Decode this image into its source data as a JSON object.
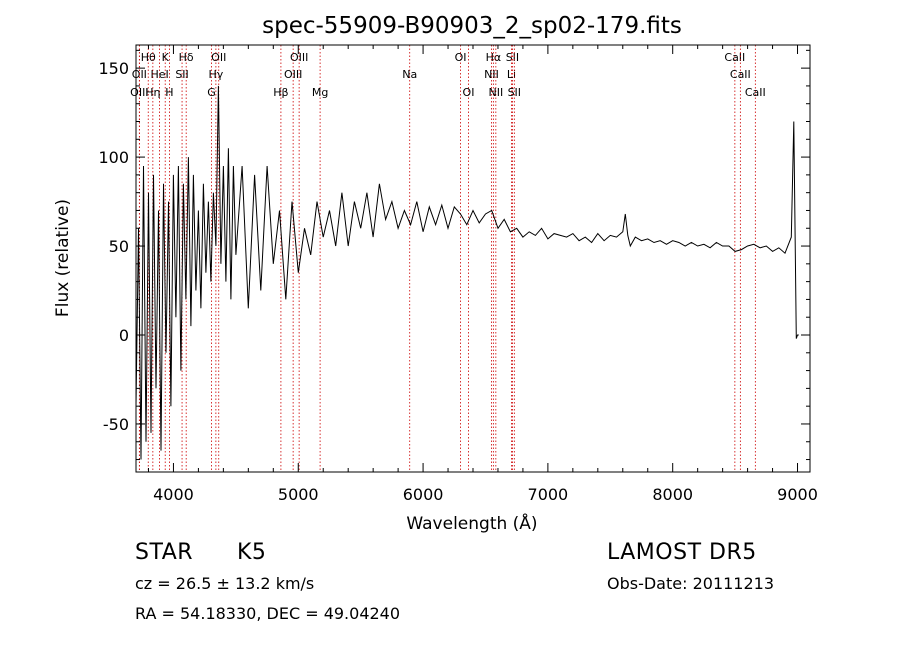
{
  "chart_data": {
    "type": "line",
    "title": "spec-55909-B90903_2_sp02-179.fits",
    "xlabel": "Wavelength (Å)",
    "ylabel": "Flux (relative)",
    "xlim": [
      3700,
      9100
    ],
    "ylim": [
      -77,
      163
    ],
    "xticks": [
      4000,
      5000,
      6000,
      7000,
      8000,
      9000
    ],
    "yticks": [
      -50,
      0,
      50,
      100,
      150
    ],
    "grid": false,
    "line_color": "#000000",
    "marker_color": "#cc0000",
    "series": [
      {
        "x": [
          3700,
          3720,
          3740,
          3760,
          3780,
          3800,
          3820,
          3840,
          3860,
          3880,
          3900,
          3920,
          3940,
          3960,
          3980,
          4000,
          4020,
          4040,
          4060,
          4080,
          4100,
          4120,
          4140,
          4160,
          4180,
          4200,
          4220,
          4240,
          4260,
          4280,
          4300,
          4320,
          4340,
          4360,
          4380,
          4400,
          4420,
          4440,
          4460,
          4480,
          4500,
          4550,
          4600,
          4650,
          4700,
          4750,
          4800,
          4850,
          4900,
          4950,
          5000,
          5050,
          5100,
          5150,
          5200,
          5250,
          5300,
          5350,
          5400,
          5450,
          5500,
          5550,
          5600,
          5650,
          5700,
          5750,
          5800,
          5850,
          5900,
          5950,
          6000,
          6050,
          6100,
          6150,
          6200,
          6250,
          6300,
          6350,
          6400,
          6450,
          6500,
          6550,
          6600,
          6650,
          6700,
          6750,
          6800,
          6850,
          6900,
          6950,
          7000,
          7050,
          7100,
          7150,
          7200,
          7250,
          7300,
          7350,
          7400,
          7450,
          7500,
          7550,
          7600,
          7620,
          7640,
          7660,
          7700,
          7750,
          7800,
          7850,
          7900,
          7950,
          8000,
          8050,
          8100,
          8150,
          8200,
          8250,
          8300,
          8350,
          8400,
          8450,
          8500,
          8550,
          8600,
          8650,
          8700,
          8750,
          8800,
          8850,
          8900,
          8950,
          8970,
          8990,
          9000,
          9010
        ],
        "y": [
          -40,
          60,
          -70,
          95,
          -60,
          80,
          -55,
          90,
          -30,
          70,
          -65,
          85,
          -10,
          75,
          -40,
          90,
          10,
          95,
          -20,
          85,
          20,
          100,
          5,
          90,
          25,
          70,
          15,
          85,
          35,
          75,
          30,
          80,
          50,
          140,
          40,
          95,
          30,
          105,
          20,
          95,
          45,
          95,
          15,
          90,
          25,
          95,
          40,
          70,
          20,
          75,
          35,
          60,
          45,
          75,
          55,
          70,
          50,
          80,
          50,
          75,
          60,
          80,
          55,
          85,
          65,
          75,
          60,
          70,
          62,
          75,
          58,
          72,
          62,
          73,
          60,
          72,
          68,
          62,
          70,
          63,
          68,
          70,
          60,
          65,
          58,
          60,
          55,
          58,
          56,
          60,
          54,
          57,
          56,
          55,
          57,
          53,
          55,
          52,
          57,
          53,
          56,
          55,
          58,
          68,
          56,
          50,
          55,
          53,
          54,
          52,
          53,
          51,
          53,
          52,
          50,
          52,
          50,
          51,
          49,
          52,
          50,
          50,
          47,
          48,
          50,
          51,
          49,
          50,
          47,
          49,
          46,
          55,
          120,
          -2,
          0,
          0
        ]
      }
    ],
    "lines": [
      {
        "label": "Hθ",
        "x": 3798,
        "row": 1
      },
      {
        "label": "OII",
        "x": 3727,
        "row": 2
      },
      {
        "label": "OIII",
        "x": 3727,
        "row": 3
      },
      {
        "label": "K",
        "x": 3934,
        "row": 1
      },
      {
        "label": "HeI",
        "x": 3889,
        "row": 2
      },
      {
        "label": "Hη",
        "x": 3835,
        "row": 3
      },
      {
        "label": "Hδ",
        "x": 4102,
        "row": 1
      },
      {
        "label": "SII",
        "x": 4069,
        "row": 2
      },
      {
        "label": "H",
        "x": 3968,
        "row": 3
      },
      {
        "label": "OII",
        "x": 4363,
        "row": 1
      },
      {
        "label": "Hγ",
        "x": 4340,
        "row": 2
      },
      {
        "label": "G",
        "x": 4305,
        "row": 3
      },
      {
        "label": "OIII",
        "x": 5007,
        "row": 1
      },
      {
        "label": "OIII",
        "x": 4959,
        "row": 2
      },
      {
        "label": "Hβ",
        "x": 4861,
        "row": 3
      },
      {
        "label": "Mg",
        "x": 5175,
        "row": 3
      },
      {
        "label": "Na",
        "x": 5893,
        "row": 2
      },
      {
        "label": "OI",
        "x": 6300,
        "row": 1
      },
      {
        "label": "OI",
        "x": 6364,
        "row": 3
      },
      {
        "label": "Hα",
        "x": 6563,
        "row": 1
      },
      {
        "label": "NII",
        "x": 6548,
        "row": 2
      },
      {
        "label": "NII",
        "x": 6583,
        "row": 3
      },
      {
        "label": "SII",
        "x": 6716,
        "row": 1
      },
      {
        "label": "Li",
        "x": 6708,
        "row": 2
      },
      {
        "label": "SII",
        "x": 6731,
        "row": 3
      },
      {
        "label": "CaII",
        "x": 8498,
        "row": 1
      },
      {
        "label": "CaII",
        "x": 8542,
        "row": 2
      },
      {
        "label": "CaII",
        "x": 8662,
        "row": 3
      }
    ]
  },
  "info": {
    "class": "STAR",
    "subclass": "K5",
    "survey": "LAMOST  DR5",
    "cz": "cz = 26.5 ± 13.2 km/s",
    "obs_date": "Obs-Date: 20111213",
    "coords": "RA =  54.18330, DEC =  49.04240"
  }
}
